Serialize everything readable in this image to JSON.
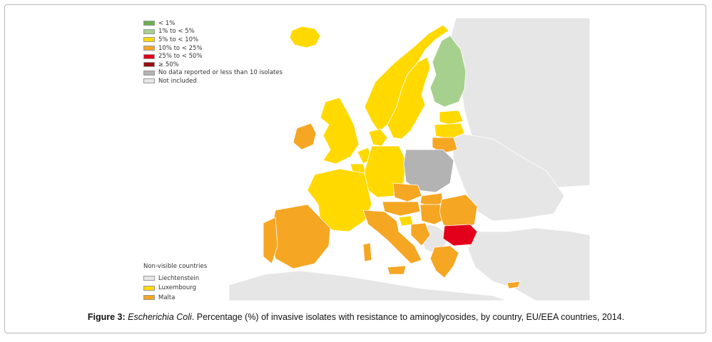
{
  "legend": {
    "items": [
      {
        "label": "< 1%",
        "color": "#6ab04c"
      },
      {
        "label": "1% to < 5%",
        "color": "#a6d08e"
      },
      {
        "label": "5% to < 10%",
        "color": "#ffd900"
      },
      {
        "label": "10% to < 25%",
        "color": "#f5a623"
      },
      {
        "label": "25% to < 50%",
        "color": "#e3001b"
      },
      {
        "label": "≥ 50%",
        "color": "#9b0e12"
      },
      {
        "label": "No data reported or less than 10 isolates",
        "color": "#b3b3b3"
      },
      {
        "label": "Not included",
        "color": "#e6e6e6"
      }
    ]
  },
  "non_visible": {
    "title": "Non-visible countries",
    "items": [
      {
        "label": "Liechtenstein",
        "color": "#e6e6e6"
      },
      {
        "label": "Luxembourg",
        "color": "#ffd900"
      },
      {
        "label": "Malta",
        "color": "#f5a623"
      }
    ]
  },
  "caption": {
    "figure_label": "Figure 3:",
    "organism": "Escherichia Coli",
    "text": ". Percentage (%) of invasive isolates with resistance to aminoglycosides, by   country, EU/EEA countries, 2014."
  },
  "colors": {
    "sea": "#ffffff",
    "not_included": "#e6e6e6",
    "border": "#ffffff"
  },
  "countries": [
    {
      "name": "Iceland",
      "category": "5% to < 10%"
    },
    {
      "name": "Norway",
      "category": "5% to < 10%"
    },
    {
      "name": "Sweden",
      "category": "5% to < 10%"
    },
    {
      "name": "Finland",
      "category": "1% to < 5%"
    },
    {
      "name": "Estonia",
      "category": "5% to < 10%"
    },
    {
      "name": "Latvia",
      "category": "5% to < 10%"
    },
    {
      "name": "Lithuania",
      "category": "10% to < 25%"
    },
    {
      "name": "Denmark",
      "category": "5% to < 10%"
    },
    {
      "name": "United Kingdom",
      "category": "5% to < 10%"
    },
    {
      "name": "Ireland",
      "category": "10% to < 25%"
    },
    {
      "name": "Netherlands",
      "category": "5% to < 10%"
    },
    {
      "name": "Belgium",
      "category": "5% to < 10%"
    },
    {
      "name": "Germany",
      "category": "5% to < 10%"
    },
    {
      "name": "Poland",
      "category": "No data reported or less than 10 isolates"
    },
    {
      "name": "France",
      "category": "5% to < 10%"
    },
    {
      "name": "Czech Republic",
      "category": "10% to < 25%"
    },
    {
      "name": "Slovakia",
      "category": "10% to < 25%"
    },
    {
      "name": "Austria",
      "category": "10% to < 25%"
    },
    {
      "name": "Hungary",
      "category": "10% to < 25%"
    },
    {
      "name": "Slovenia",
      "category": "5% to < 10%"
    },
    {
      "name": "Croatia",
      "category": "10% to < 25%"
    },
    {
      "name": "Romania",
      "category": "10% to < 25%"
    },
    {
      "name": "Bulgaria",
      "category": "25% to < 50%"
    },
    {
      "name": "Greece",
      "category": "10% to < 25%"
    },
    {
      "name": "Italy",
      "category": "10% to < 25%"
    },
    {
      "name": "Spain",
      "category": "10% to < 25%"
    },
    {
      "name": "Portugal",
      "category": "10% to < 25%"
    },
    {
      "name": "Cyprus",
      "category": "10% to < 25%"
    }
  ]
}
